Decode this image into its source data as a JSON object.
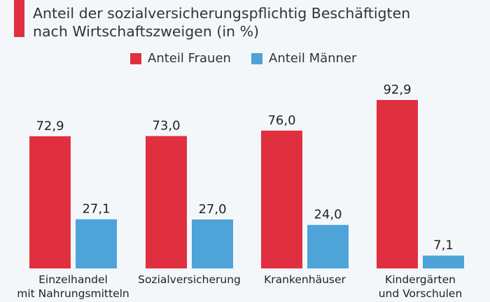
{
  "chart_data": {
    "type": "bar",
    "title": "Anteil der sozialversicherungspflichtig Beschäftigten nach Wirtschaftszweigen (in %)",
    "title_lines": [
      "Anteil der sozialversicherungspflichtig Beschäftigten",
      "nach Wirtschaftszweigen (in %)"
    ],
    "categories": [
      [
        "Einzelhandel",
        "mit Nahrungsmitteln"
      ],
      [
        "Sozialversicherung"
      ],
      [
        "Krankenhäuser"
      ],
      [
        "Kindergärten",
        "und Vorschulen"
      ]
    ],
    "series": [
      {
        "name": "Anteil Frauen",
        "color": "#e0303f",
        "values": [
          72.9,
          73.0,
          76.0,
          92.9
        ],
        "labels": [
          "72,9",
          "73,0",
          "76,0",
          "92,9"
        ]
      },
      {
        "name": "Anteil Männer",
        "color": "#4ea3d8",
        "values": [
          27.1,
          27.0,
          24.0,
          7.1
        ],
        "labels": [
          "27,1",
          "27,0",
          "24,0",
          "7,1"
        ]
      }
    ],
    "ylim": [
      0,
      100
    ],
    "grid": false,
    "legend_position": "top-center",
    "xlabel": "",
    "ylabel": ""
  }
}
